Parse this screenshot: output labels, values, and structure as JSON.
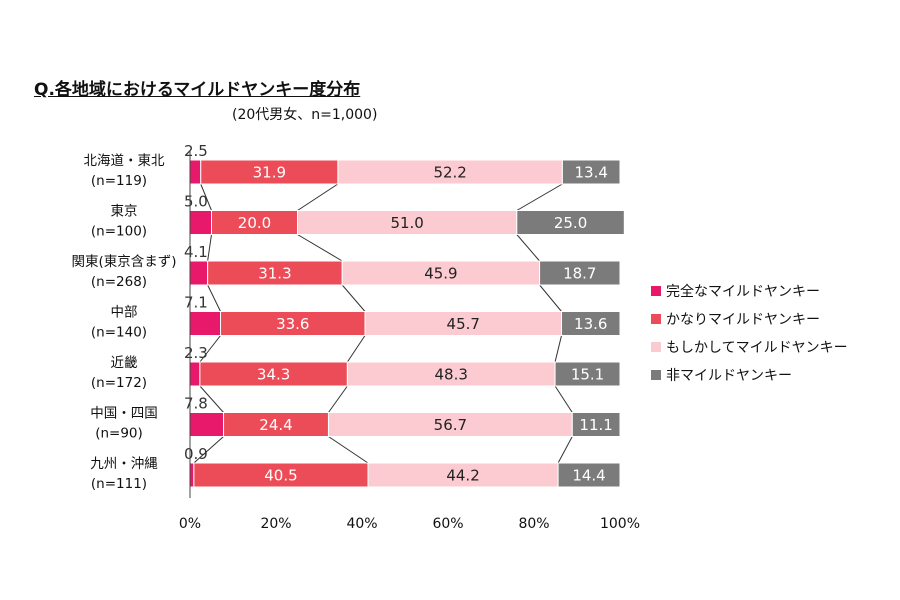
{
  "chart_data": {
    "type": "bar",
    "orientation": "horizontal",
    "stacked": true,
    "title": "Q.各地域におけるマイルドヤンキー度分布",
    "subtitle": "(20代男女、n=1,000)",
    "categories": [
      {
        "name": "北海道・東北",
        "n": "(n=119)"
      },
      {
        "name": "東京",
        "n": "(n=100)"
      },
      {
        "name": "関東(東京含まず)",
        "n": "(n=268)"
      },
      {
        "name": "中部",
        "n": "(n=140)"
      },
      {
        "name": "近畿",
        "n": "(n=172)"
      },
      {
        "name": "中国・四国",
        "n": "(n=90)"
      },
      {
        "name": "九州・沖縄",
        "n": "(n=111)"
      }
    ],
    "series": [
      {
        "name": "完全なマイルドヤンキー",
        "color": "#e8186a",
        "text_color": "#333333",
        "label_outside": true,
        "values": [
          2.5,
          5.0,
          4.1,
          7.1,
          2.3,
          7.8,
          0.9
        ]
      },
      {
        "name": "かなりマイルドヤンキー",
        "color": "#ec4c57",
        "text_color": "#ffffff",
        "values": [
          31.9,
          20.0,
          31.3,
          33.6,
          34.3,
          24.4,
          40.5
        ]
      },
      {
        "name": "もしかしてマイルドヤンキー",
        "color": "#fbcbd1",
        "text_color": "#222222",
        "values": [
          52.2,
          51.0,
          45.9,
          45.7,
          48.3,
          56.7,
          44.2
        ]
      },
      {
        "name": "非マイルドヤンキー",
        "color": "#7b7b7b",
        "text_color": "#ffffff",
        "values": [
          13.4,
          25.0,
          18.7,
          13.6,
          15.1,
          11.1,
          14.4
        ]
      }
    ],
    "xlim": [
      0,
      100
    ],
    "x_ticks": [
      "0%",
      "20%",
      "40%",
      "60%",
      "80%",
      "100%"
    ],
    "grid": false,
    "legend_position": "right",
    "series_connector_lines": true
  }
}
